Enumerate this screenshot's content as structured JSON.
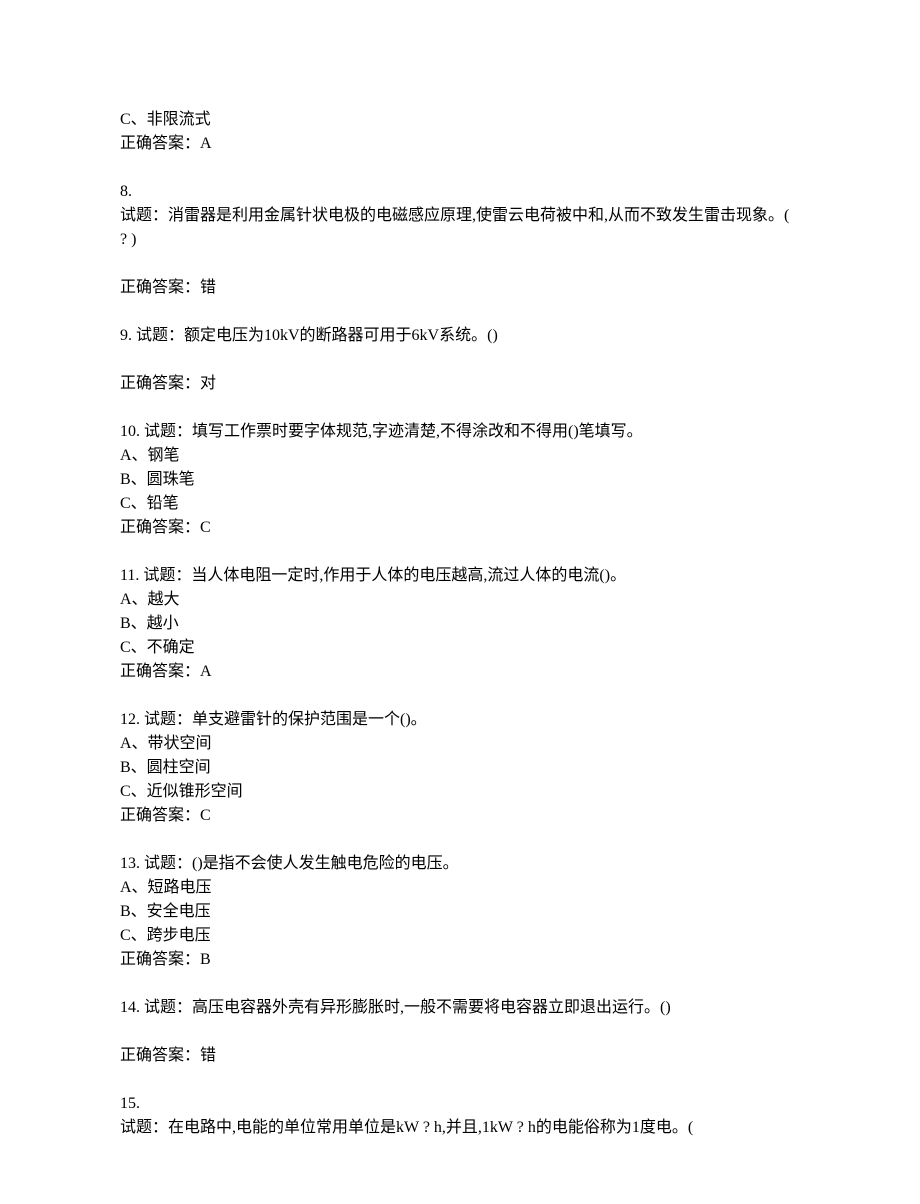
{
  "partial_q7": {
    "option_c": "C、非限流式",
    "answer": "正确答案：A"
  },
  "q8": {
    "number": "8.",
    "text": "试题：消雷器是利用金属针状电极的电磁感应原理,使雷云电荷被中和,从而不致发生雷击现象。( ? )",
    "answer": "正确答案：错"
  },
  "q9": {
    "text": "9. 试题：额定电压为10kV的断路器可用于6kV系统。()",
    "answer": "正确答案：对"
  },
  "q10": {
    "text": "10. 试题：填写工作票时要字体规范,字迹清楚,不得涂改和不得用()笔填写。",
    "option_a": "A、钢笔",
    "option_b": "B、圆珠笔",
    "option_c": "C、铅笔",
    "answer": "正确答案：C"
  },
  "q11": {
    "text": "11. 试题：当人体电阻一定时,作用于人体的电压越高,流过人体的电流()。",
    "option_a": "A、越大",
    "option_b": "B、越小",
    "option_c": "C、不确定",
    "answer": "正确答案：A"
  },
  "q12": {
    "text": "12. 试题：单支避雷针的保护范围是一个()。",
    "option_a": "A、带状空间",
    "option_b": "B、圆柱空间",
    "option_c": "C、近似锥形空间",
    "answer": "正确答案：C"
  },
  "q13": {
    "text": "13. 试题：()是指不会使人发生触电危险的电压。",
    "option_a": "A、短路电压",
    "option_b": "B、安全电压",
    "option_c": "C、跨步电压",
    "answer": "正确答案：B"
  },
  "q14": {
    "text": "14. 试题：高压电容器外壳有异形膨胀时,一般不需要将电容器立即退出运行。()",
    "answer": "正确答案：错"
  },
  "q15": {
    "number": "15.",
    "text": "试题：在电路中,电能的单位常用单位是kW ? h,并且,1kW ? h的电能俗称为1度电。("
  }
}
